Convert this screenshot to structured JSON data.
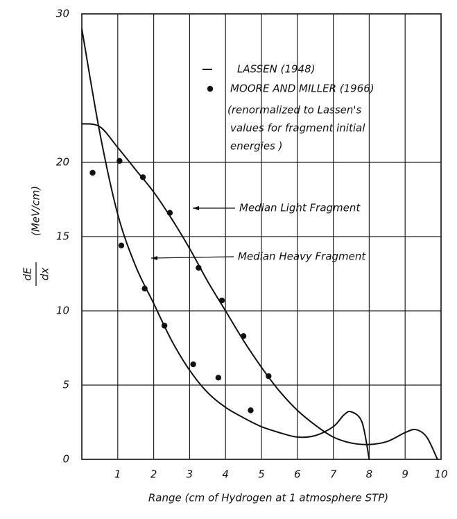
{
  "chart_data": {
    "type": "line",
    "x_label": "Range (cm of Hydrogen at 1 atmosphere STP)",
    "y_label_numerator": "dE",
    "y_label_denominator": "dx",
    "y_label_units": "(MeV/cm)",
    "xlim": [
      0,
      10
    ],
    "ylim": [
      0,
      30
    ],
    "xticks": [
      1,
      2,
      3,
      4,
      5,
      6,
      7,
      8,
      9,
      10
    ],
    "yticks": [
      0,
      5,
      10,
      15,
      20,
      30
    ],
    "grid": true,
    "legend_note": [
      "(renormalized to Lassen's",
      "values for fragment initial",
      "energies )"
    ],
    "annotations": [
      "Median Light Fragment",
      "Median Heavy Fragment"
    ],
    "series": [
      {
        "name": "LASSEN (1948)",
        "kind": "line",
        "color": "#111111",
        "x": [
          0,
          0.5,
          1,
          1.5,
          2,
          2.5,
          3,
          3.5,
          4,
          4.5,
          5,
          5.5,
          6,
          6.5,
          7,
          7.5,
          8,
          8.5,
          9,
          9.3,
          9.6,
          9.9
        ],
        "values": [
          22.6,
          22.4,
          21,
          19.5,
          18,
          16.2,
          14.2,
          12,
          10,
          8,
          6.2,
          4.6,
          3.3,
          2.3,
          1.5,
          1.1,
          1.0,
          1.2,
          1.8,
          2.0,
          1.5,
          0
        ]
      },
      {
        "kind": "line",
        "color": "#111111",
        "x": [
          0,
          0.5,
          1,
          1.5,
          2,
          2.5,
          3,
          3.5,
          4,
          4.5,
          5,
          5.5,
          6,
          6.5,
          7,
          7.3,
          7.5,
          7.8,
          8
        ],
        "values": [
          29,
          22,
          16.5,
          13,
          10.5,
          8,
          6,
          4.5,
          3.5,
          2.8,
          2.2,
          1.8,
          1.5,
          1.6,
          2.2,
          3,
          3.2,
          2.5,
          0
        ]
      },
      {
        "name": "MOORE AND MILLER (1966)",
        "kind": "scatter",
        "color": "#111111",
        "x": [
          0.3,
          1.05,
          1.1,
          1.7,
          1.75,
          2.3,
          2.45,
          3.1,
          3.25,
          3.8,
          3.9,
          4.5,
          4.7,
          5.2
        ],
        "values": [
          19.3,
          20.1,
          14.4,
          19,
          11.5,
          9,
          16.6,
          6.4,
          12.9,
          5.5,
          10.7,
          8.3,
          3.3,
          5.6
        ]
      }
    ]
  }
}
